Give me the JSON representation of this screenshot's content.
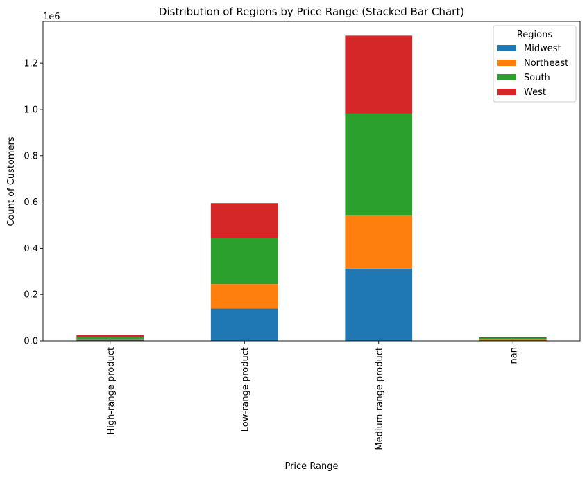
{
  "chart_data": {
    "type": "bar",
    "stacked": true,
    "title": "Distribution of Regions by Price Range (Stacked Bar Chart)",
    "xlabel": "Price Range",
    "ylabel": "Count of Customers",
    "y_offset_label": "1e6",
    "ylim": [
      0,
      1380000
    ],
    "yticks": [
      0,
      200000,
      400000,
      600000,
      800000,
      1000000,
      1200000
    ],
    "ytick_labels": [
      "0.0",
      "0.2",
      "0.4",
      "0.6",
      "0.8",
      "1.0",
      "1.2"
    ],
    "categories": [
      "High-range product",
      "Low-range product",
      "Medium-range product",
      "nan"
    ],
    "legend_title": "Regions",
    "legend_position": "top-right",
    "grid": false,
    "series": [
      {
        "name": "Midwest",
        "color": "#1f77b4",
        "values": [
          5000,
          140000,
          312000,
          3000
        ]
      },
      {
        "name": "Northeast",
        "color": "#ff7f0e",
        "values": [
          4000,
          105000,
          230000,
          2000
        ]
      },
      {
        "name": "South",
        "color": "#2ca02c",
        "values": [
          8000,
          200000,
          440000,
          7000
        ]
      },
      {
        "name": "West",
        "color": "#d62728",
        "values": [
          8000,
          150000,
          337000,
          3000
        ]
      }
    ]
  }
}
